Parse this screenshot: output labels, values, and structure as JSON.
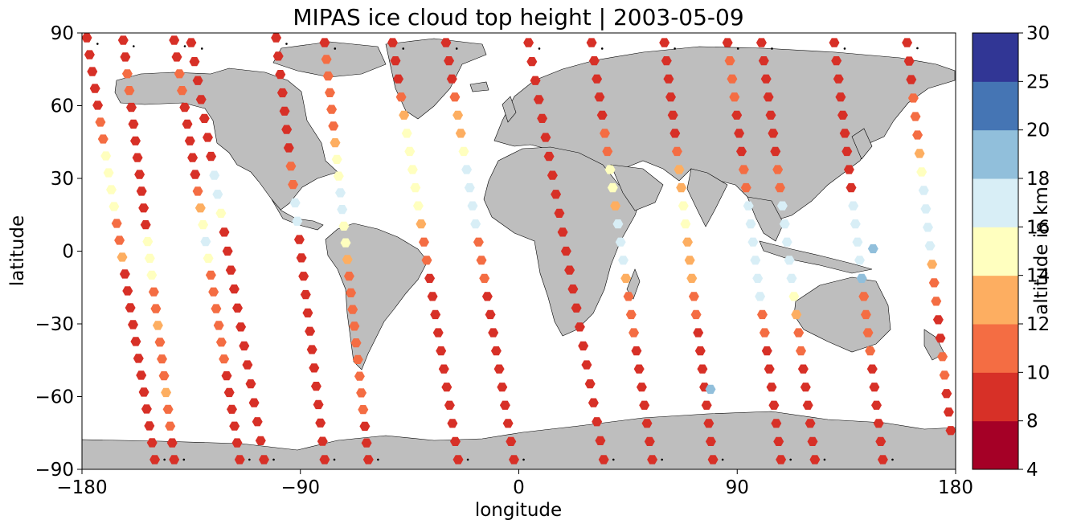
{
  "title": "MIPAS ice cloud top height | 2003-05-09",
  "map": {
    "xlabel": "longitude",
    "ylabel": "latitude",
    "xlim": [
      -180,
      180
    ],
    "ylim": [
      -90,
      90
    ],
    "xticks": [
      -180,
      -90,
      0,
      90,
      180
    ],
    "xtick_labels": [
      "−180",
      "−90",
      "0",
      "90",
      "180"
    ],
    "yticks": [
      90,
      60,
      30,
      0,
      -30,
      -60,
      -90
    ],
    "ytick_labels": [
      "90",
      "60",
      "30",
      "0",
      "−30",
      "−60",
      "−90"
    ],
    "land_color": "#bebebe",
    "ocean_color": "#ffffff",
    "coast_color": "#000000"
  },
  "colorbar": {
    "label": "altitude in km",
    "bounds": [
      4,
      8,
      10,
      12,
      14,
      16,
      18,
      20,
      25,
      30
    ],
    "tick_labels": [
      "4",
      "8",
      "10",
      "12",
      "14",
      "16",
      "18",
      "20",
      "25",
      "30"
    ],
    "colors": [
      "#a50026",
      "#d73027",
      "#f46d43",
      "#fdae61",
      "#ffffbf",
      "#d8eef6",
      "#91bfdb",
      "#4575b4",
      "#313695"
    ]
  },
  "chart_data": {
    "type": "scatter",
    "title": "MIPAS ice cloud top height | 2003-05-09",
    "xlabel": "longitude",
    "ylabel": "latitude",
    "xlim": [
      -180,
      180
    ],
    "ylim": [
      -90,
      90
    ],
    "value_label": "altitude in km",
    "tracks": [
      {
        "lon0": -178,
        "lat0": 88,
        "lon1": -150,
        "lat1": -86,
        "values": [
          8,
          8,
          8,
          8,
          8,
          11,
          11,
          15,
          15,
          15,
          15,
          11,
          11,
          13,
          8,
          8,
          8,
          8,
          8,
          8,
          8,
          8,
          8,
          8,
          8,
          8
        ]
      },
      {
        "lon0": -163,
        "lat0": 87,
        "lon1": -142,
        "lat1": -86,
        "values": [
          8,
          8,
          11,
          11,
          8,
          8,
          8,
          8,
          8,
          8,
          8,
          8,
          15,
          15,
          15,
          11,
          11,
          12,
          11,
          11,
          11,
          13,
          11,
          11,
          8,
          8
        ]
      },
      {
        "lon0": -142,
        "lat0": 87,
        "lon1": -115,
        "lat1": -86,
        "values": [
          8,
          8,
          11,
          11,
          8,
          8,
          8,
          8,
          8,
          11,
          13,
          15,
          17,
          15,
          11,
          11,
          11,
          11,
          11,
          11,
          8,
          8,
          8,
          8,
          8,
          8
        ]
      },
      {
        "lon0": -135,
        "lat0": 86,
        "lon1": -105,
        "lat1": -86,
        "values": [
          8,
          8,
          8,
          8,
          8,
          8,
          8,
          17,
          17,
          15,
          8,
          8,
          8,
          8,
          8,
          8,
          8,
          8,
          8,
          8,
          8,
          8,
          8
        ]
      },
      {
        "lon0": -100,
        "lat0": 88,
        "lon1": -80,
        "lat1": -86,
        "values": [
          8,
          8,
          8,
          8,
          8,
          8,
          8,
          11,
          11,
          17,
          17,
          8,
          8,
          8,
          8,
          8,
          8,
          8,
          8,
          8,
          8,
          8,
          8,
          8
        ]
      },
      {
        "lon0": -80,
        "lat0": 86,
        "lon1": -62,
        "lat1": -86,
        "values": [
          8,
          11,
          11,
          11,
          11,
          11,
          13,
          15,
          15,
          17,
          17,
          15,
          15,
          13,
          11,
          11,
          11,
          11,
          11,
          11,
          11,
          11,
          11,
          8,
          8,
          8
        ]
      },
      {
        "lon0": -52,
        "lat0": 86,
        "lon1": -25,
        "lat1": -86,
        "values": [
          8,
          8,
          8,
          11,
          13,
          15,
          15,
          15,
          15,
          15,
          13,
          11,
          11,
          8,
          8,
          8,
          8,
          8,
          8,
          8,
          8,
          8,
          8,
          8
        ]
      },
      {
        "lon0": -30,
        "lat0": 86,
        "lon1": -2,
        "lat1": -86,
        "values": [
          8,
          8,
          8,
          11,
          13,
          13,
          15,
          17,
          17,
          17,
          17,
          11,
          11,
          11,
          8,
          8,
          8,
          8,
          8,
          8,
          8,
          8,
          8,
          8
        ]
      },
      {
        "lon0": 4,
        "lat0": 86,
        "lon1": 35,
        "lat1": -86,
        "values": [
          8,
          8,
          8,
          8,
          8,
          8,
          8,
          8,
          8,
          8,
          8,
          8,
          8,
          9,
          8,
          8,
          8,
          8,
          8,
          8,
          8,
          8,
          8
        ]
      },
      {
        "lon0": 30,
        "lat0": 86,
        "lon1": 55,
        "lat1": -86,
        "values": [
          8,
          8,
          8,
          8,
          8,
          11,
          11,
          15,
          15,
          13,
          17,
          17,
          17,
          13,
          11,
          11,
          11,
          9,
          9,
          9,
          8,
          8,
          8,
          8
        ]
      },
      {
        "lon0": 60,
        "lat0": 86,
        "lon1": 80,
        "lat1": -86,
        "values": [
          8,
          8,
          8,
          8,
          8,
          8,
          11,
          13,
          13,
          15,
          15,
          13,
          13,
          13,
          11,
          11,
          8,
          8,
          8,
          8,
          8,
          8,
          8,
          8
        ]
      },
      {
        "lon0": 86,
        "lat0": 86,
        "lon1": 108,
        "lat1": -86,
        "values": [
          8,
          11,
          11,
          11,
          8,
          8,
          8,
          11,
          11,
          17,
          17,
          17,
          17,
          17,
          17,
          11,
          11,
          9,
          9,
          8,
          8,
          8,
          8,
          8
        ]
      },
      {
        "lon0": 100,
        "lat0": 86,
        "lon1": 122,
        "lat1": -86,
        "values": [
          8,
          8,
          8,
          8,
          8,
          8,
          8,
          11,
          11,
          17,
          17,
          17,
          17,
          17,
          15,
          13,
          11,
          11,
          9,
          9,
          8,
          8,
          8,
          8
        ]
      },
      {
        "lon0": 130,
        "lat0": 86,
        "lon1": 150,
        "lat1": -86,
        "values": [
          8,
          8,
          8,
          8,
          8,
          8,
          8,
          8,
          8,
          17,
          17,
          17,
          17,
          19,
          11,
          11,
          11,
          11,
          9,
          9,
          8,
          8,
          8,
          8
        ]
      },
      {
        "lon0": 160,
        "lat0": 86,
        "lon1": 178,
        "lat1": -74,
        "values": [
          8,
          8,
          8,
          11,
          11,
          11,
          13,
          15,
          17,
          17,
          17,
          17,
          13,
          11,
          11,
          9,
          9,
          11,
          11,
          9,
          8,
          8
        ]
      }
    ],
    "single_points": [
      {
        "lon": 79,
        "lat": -57,
        "value": 19
      },
      {
        "lon": 146,
        "lat": 1,
        "value": 19
      }
    ],
    "no_cloud_marker": "black dot"
  }
}
